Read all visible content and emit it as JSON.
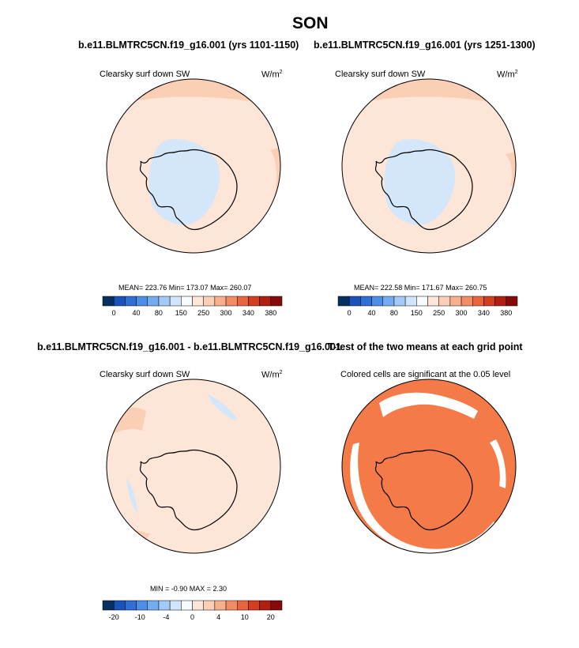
{
  "figure": {
    "title": "SON"
  },
  "panels": [
    {
      "case_title": "b.e11.BLMTRC5CN.f19_g16.001 (yrs 1101-1150)",
      "variable": "Clearsky surf down SW",
      "units": "W/m",
      "units_sup": "2",
      "stats": "MEAN= 223.76  Min= 173.07  Max= 260.07"
    },
    {
      "case_title": "b.e11.BLMTRC5CN.f19_g16.001 (yrs 1251-1300)",
      "variable": "Clearsky surf down SW",
      "units": "W/m",
      "units_sup": "2",
      "stats": "MEAN= 222.58  Min= 171.67  Max= 260.75"
    },
    {
      "case_title": "b.e11.BLMTRC5CN.f19_g16.001 - b.e11.BLMTRC5CN.f19_g16.001",
      "variable": "Clearsky surf down SW",
      "units": "W/m",
      "units_sup": "2",
      "stats": "MIN =  -0.90 MAX =   2.30"
    },
    {
      "case_title": "T-test of the two means at each grid point",
      "variable": "Colored cells are significant at the 0.05 level"
    }
  ],
  "colorbars": {
    "absolute": {
      "colors": [
        "#053061",
        "#1a52b8",
        "#2f6fd6",
        "#4d8fe6",
        "#74acf0",
        "#a3c9f7",
        "#d0e4fb",
        "#f6fbff",
        "#fde6d8",
        "#fbcfb6",
        "#f7b08e",
        "#f28c65",
        "#e9653f",
        "#d23e1f",
        "#b01f10",
        "#850b0b"
      ],
      "ticks": [
        "0",
        "40",
        "80",
        "150",
        "250",
        "300",
        "340",
        "380"
      ]
    },
    "difference": {
      "colors": [
        "#053061",
        "#1a52b8",
        "#2f6fd6",
        "#4d8fe6",
        "#74acf0",
        "#a3c9f7",
        "#d0e4fb",
        "#f6fbff",
        "#fde6d8",
        "#fbcfb6",
        "#f7b08e",
        "#f28c65",
        "#e9653f",
        "#d23e1f",
        "#b01f10",
        "#850b0b"
      ],
      "ticks": [
        "-20",
        "-10",
        "-4",
        "0",
        "4",
        "10",
        "20"
      ]
    }
  },
  "map_colors": {
    "ocean_light": "#fde6d8",
    "ocean_warm": "#fbcfb6",
    "ice_blue": "#d4e6f9",
    "significant": "#f47a48"
  }
}
